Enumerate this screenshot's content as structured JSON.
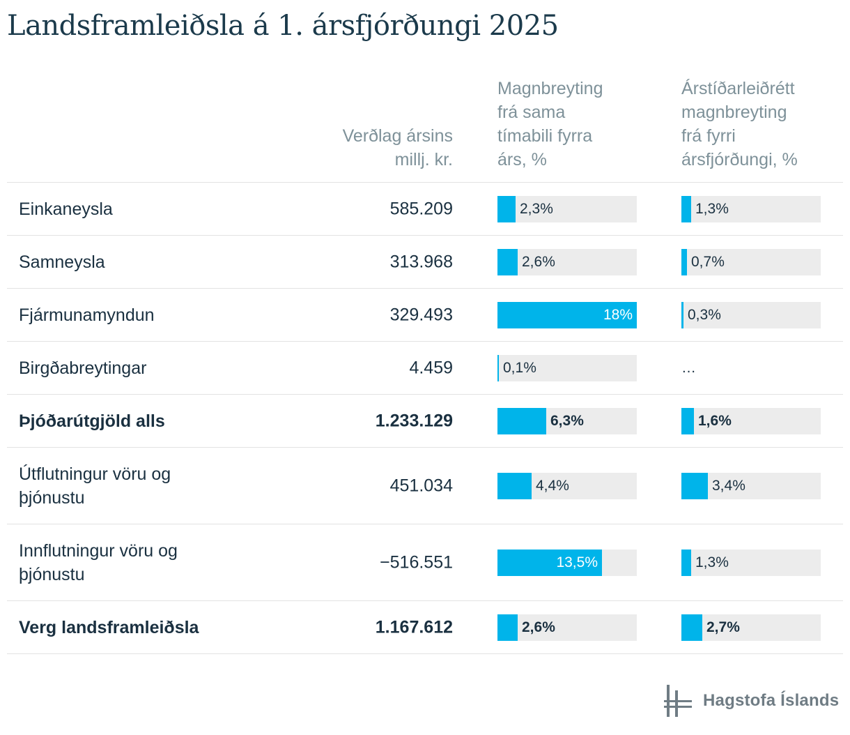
{
  "title": "Landsframleiðsla á 1. ársfjórðungi 2025",
  "headers": {
    "price": "Verðlag ársins\nmillj. kr.",
    "yoy": "Magnbreyting\nfrá sama\ntímabili fyrra\nárs, %",
    "qoq": "Árstíðarleiðrétt\nmagnbreyting\nfrá fyrri\nársfjórðungi, %"
  },
  "logo_text": "Hagstofa Íslands",
  "colors": {
    "bar": "#00b4ea",
    "track": "#ececec",
    "text": "#1a3040",
    "header": "#7e9199"
  },
  "chart_data": {
    "type": "table",
    "bar_max": 18,
    "rows": [
      {
        "label": "Einkaneysla",
        "price": "585.209",
        "yoy": 2.3,
        "yoy_label": "2,3%",
        "qoq": 1.3,
        "qoq_label": "1,3%",
        "bold": false
      },
      {
        "label": "Samneysla",
        "price": "313.968",
        "yoy": 2.6,
        "yoy_label": "2,6%",
        "qoq": 0.7,
        "qoq_label": "0,7%",
        "bold": false
      },
      {
        "label": "Fjármunamyndun",
        "price": "329.493",
        "yoy": 18,
        "yoy_label": "18%",
        "qoq": 0.3,
        "qoq_label": "0,3%",
        "bold": false
      },
      {
        "label": "Birgðabreytingar",
        "price": "4.459",
        "yoy": 0.1,
        "yoy_label": "0,1%",
        "qoq": null,
        "qoq_label": "…",
        "bold": false
      },
      {
        "label": "Þjóðarútgjöld alls",
        "price": "1.233.129",
        "yoy": 6.3,
        "yoy_label": "6,3%",
        "qoq": 1.6,
        "qoq_label": "1,6%",
        "bold": true
      },
      {
        "label": "Útflutningur vöru og þjónustu",
        "price": "451.034",
        "yoy": 4.4,
        "yoy_label": "4,4%",
        "qoq": 3.4,
        "qoq_label": "3,4%",
        "bold": false
      },
      {
        "label": "Innflutningur vöru og þjónustu",
        "price": "−516.551",
        "yoy": 13.5,
        "yoy_label": "13,5%",
        "qoq": 1.3,
        "qoq_label": "1,3%",
        "bold": false
      },
      {
        "label": "Verg landsframleiðsla",
        "price": "1.167.612",
        "yoy": 2.6,
        "yoy_label": "2,6%",
        "qoq": 2.7,
        "qoq_label": "2,7%",
        "bold": true
      }
    ]
  }
}
